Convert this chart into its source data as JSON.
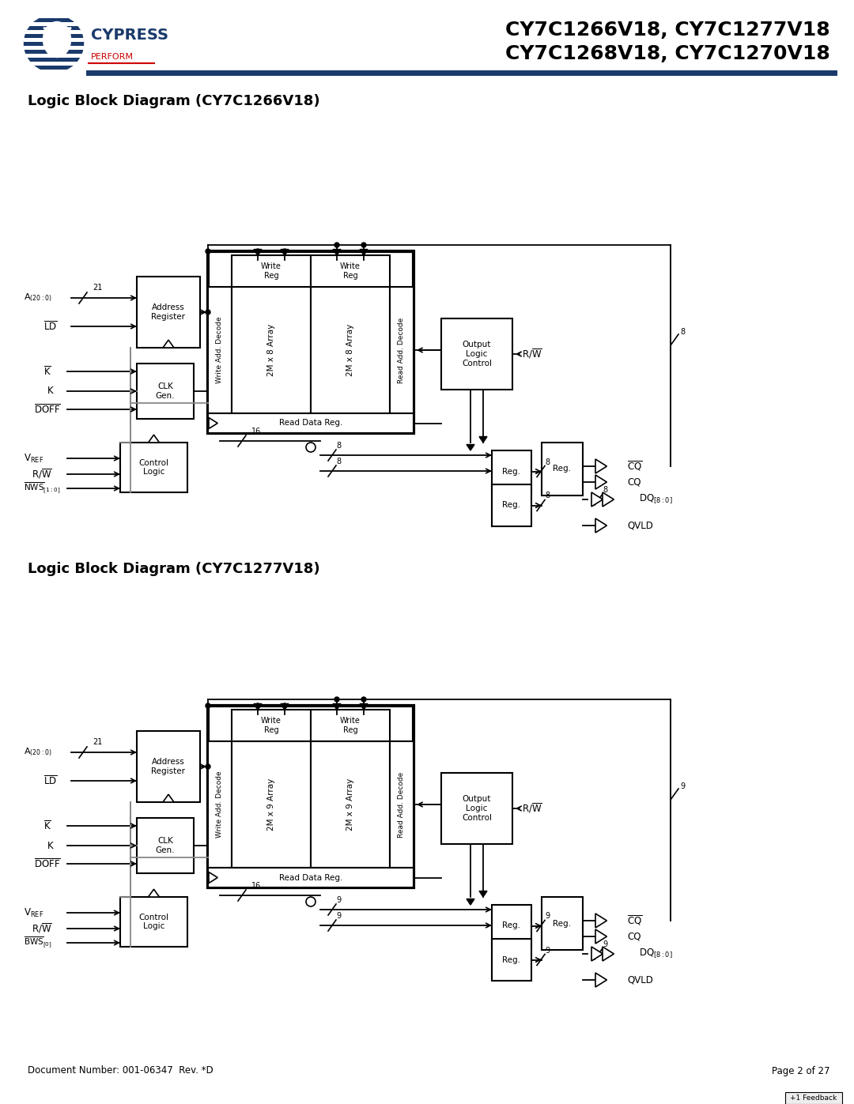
{
  "title_line1": "CY7C1266V18, CY7C1277V18",
  "title_line2": "CY7C1268V18, CY7C1270V18",
  "diagram1_title": "Logic Block Diagram (CY7C1266V18)",
  "diagram2_title": "Logic Block Diagram (CY7C1277V18)",
  "footer_left": "Document Number: 001-06347  Rev. *D",
  "footer_right": "Page 2 of 27",
  "bg_color": "#ffffff",
  "text_color": "#000000",
  "header_line_color": "#1a3a6b",
  "cypress_blue": "#1a3a6b",
  "cypress_red": "#cc0000"
}
